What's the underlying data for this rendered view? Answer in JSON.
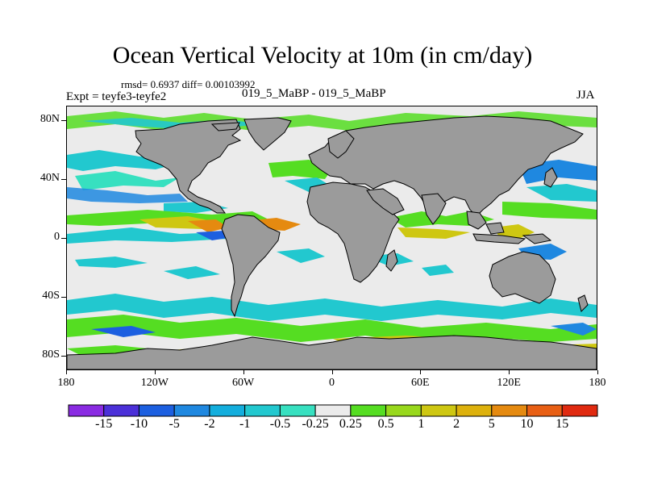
{
  "title": "Ocean Vertical Velocity at 10m (in cm/day)",
  "stats": "rmsd= 0.6937 diff= 0.00103992",
  "subtitle": "019_5_MaBP - 019_5_MaBP",
  "experiment": "Expt = teyfe3-teyfe2",
  "season": "JJA",
  "map": {
    "projection": "cylindrical-equidistant",
    "lon_range": [
      -180,
      180
    ],
    "lat_range": [
      -90,
      90
    ],
    "land_color": "#9b9b9b",
    "ocean_background": "#ebebeb",
    "y_ticks": [
      {
        "label": "80N",
        "lat": 80
      },
      {
        "label": "40N",
        "lat": 40
      },
      {
        "label": "0",
        "lat": 0
      },
      {
        "label": "40S",
        "lat": -40
      },
      {
        "label": "80S",
        "lat": -80
      }
    ],
    "x_ticks": [
      {
        "label": "180",
        "lon": -180
      },
      {
        "label": "120W",
        "lon": -120
      },
      {
        "label": "60W",
        "lon": -60
      },
      {
        "label": "0",
        "lon": 0
      },
      {
        "label": "60E",
        "lon": 60
      },
      {
        "label": "120E",
        "lon": 120
      },
      {
        "label": "180",
        "lon": 180
      }
    ]
  },
  "colorbar": {
    "tick_labels": [
      "-15",
      "-10",
      "-5",
      "-2",
      "-1",
      "-0.5",
      "-0.25",
      "0.25",
      "0.5",
      "1",
      "2",
      "5",
      "10",
      "15"
    ],
    "colors": [
      "#8a2be2",
      "#4b30d8",
      "#1c5fe0",
      "#1f88e0",
      "#13aedd",
      "#22c8cf",
      "#37e0c0",
      "#ebebeb",
      "#55dd22",
      "#98d81c",
      "#cec712",
      "#ddb10c",
      "#e58a10",
      "#e85f14",
      "#e02a10"
    ]
  }
}
